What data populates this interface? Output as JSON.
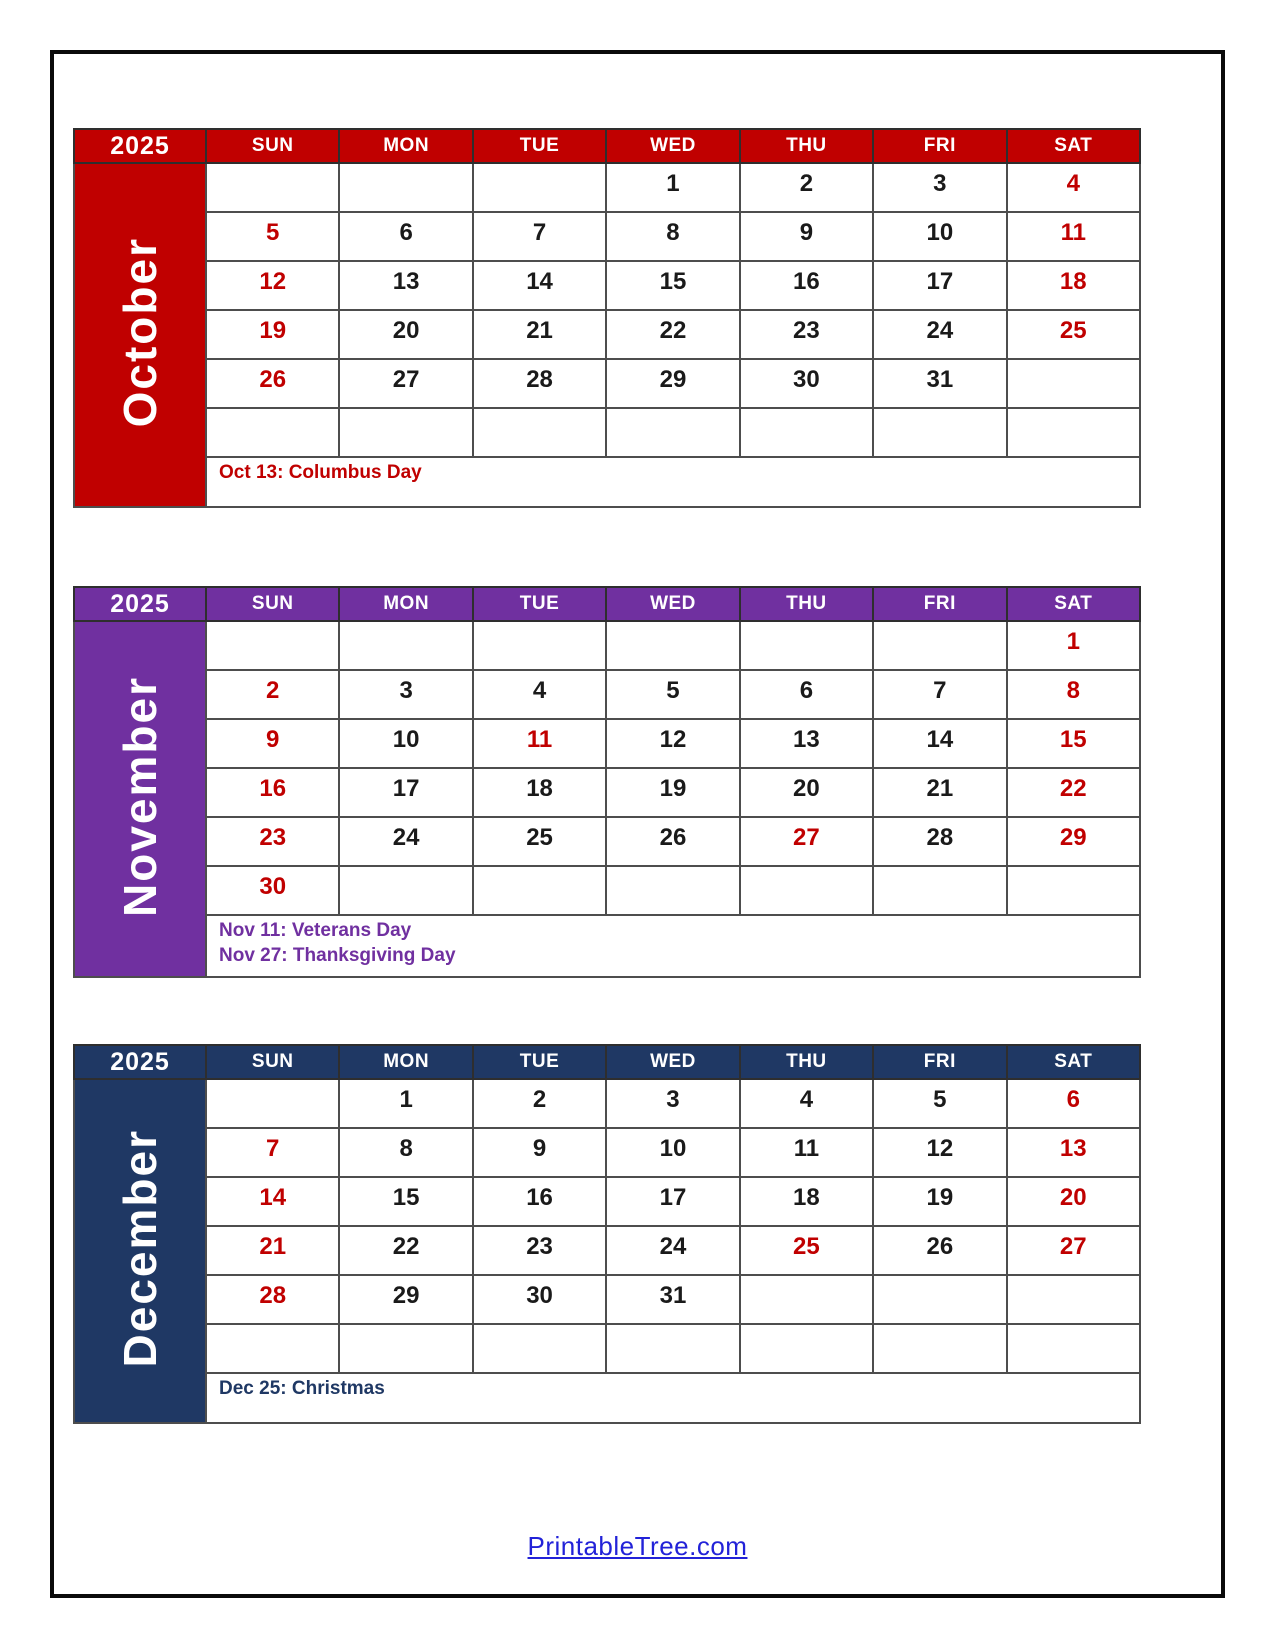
{
  "page": {
    "footer_link": "PrintableTree.com"
  },
  "colors": {
    "date_red": "#C00000",
    "grid_line": "#4d4d4d",
    "link_blue": "#2222D8",
    "october_theme": "#C00000",
    "november_theme": "#7030A0",
    "december_theme": "#1F3864"
  },
  "day_headers": [
    "SUN",
    "MON",
    "TUE",
    "WED",
    "THU",
    "FRI",
    "SAT"
  ],
  "months": [
    {
      "year": "2025",
      "name": "October",
      "theme": "#C00000",
      "weeks": [
        [
          "",
          "",
          "",
          "1",
          "2",
          "3",
          "4"
        ],
        [
          "5",
          "6",
          "7",
          "8",
          "9",
          "10",
          "11"
        ],
        [
          "12",
          "13",
          "14",
          "15",
          "16",
          "17",
          "18"
        ],
        [
          "19",
          "20",
          "21",
          "22",
          "23",
          "24",
          "25"
        ],
        [
          "26",
          "27",
          "28",
          "29",
          "30",
          "31",
          ""
        ],
        [
          "",
          "",
          "",
          "",
          "",
          "",
          ""
        ]
      ],
      "red_dates": [
        "4",
        "5",
        "11",
        "12",
        "18",
        "19",
        "25",
        "26"
      ],
      "holidays": [
        "Oct 13: Columbus Day"
      ]
    },
    {
      "year": "2025",
      "name": "November",
      "theme": "#7030A0",
      "weeks": [
        [
          "",
          "",
          "",
          "",
          "",
          "",
          "1"
        ],
        [
          "2",
          "3",
          "4",
          "5",
          "6",
          "7",
          "8"
        ],
        [
          "9",
          "10",
          "11",
          "12",
          "13",
          "14",
          "15"
        ],
        [
          "16",
          "17",
          "18",
          "19",
          "20",
          "21",
          "22"
        ],
        [
          "23",
          "24",
          "25",
          "26",
          "27",
          "28",
          "29"
        ],
        [
          "30",
          "",
          "",
          "",
          "",
          "",
          ""
        ]
      ],
      "red_dates": [
        "1",
        "2",
        "8",
        "9",
        "11",
        "15",
        "16",
        "22",
        "23",
        "27",
        "29",
        "30"
      ],
      "holidays": [
        "Nov 11: Veterans Day",
        "Nov 27: Thanksgiving Day"
      ]
    },
    {
      "year": "2025",
      "name": "December",
      "theme": "#1F3864",
      "weeks": [
        [
          "",
          "1",
          "2",
          "3",
          "4",
          "5",
          "6"
        ],
        [
          "7",
          "8",
          "9",
          "10",
          "11",
          "12",
          "13"
        ],
        [
          "14",
          "15",
          "16",
          "17",
          "18",
          "19",
          "20"
        ],
        [
          "21",
          "22",
          "23",
          "24",
          "25",
          "26",
          "27"
        ],
        [
          "28",
          "29",
          "30",
          "31",
          "",
          "",
          ""
        ],
        [
          "",
          "",
          "",
          "",
          "",
          "",
          ""
        ]
      ],
      "red_dates": [
        "6",
        "7",
        "13",
        "14",
        "20",
        "21",
        "25",
        "27",
        "28"
      ],
      "holidays": [
        "Dec 25: Christmas"
      ]
    }
  ]
}
